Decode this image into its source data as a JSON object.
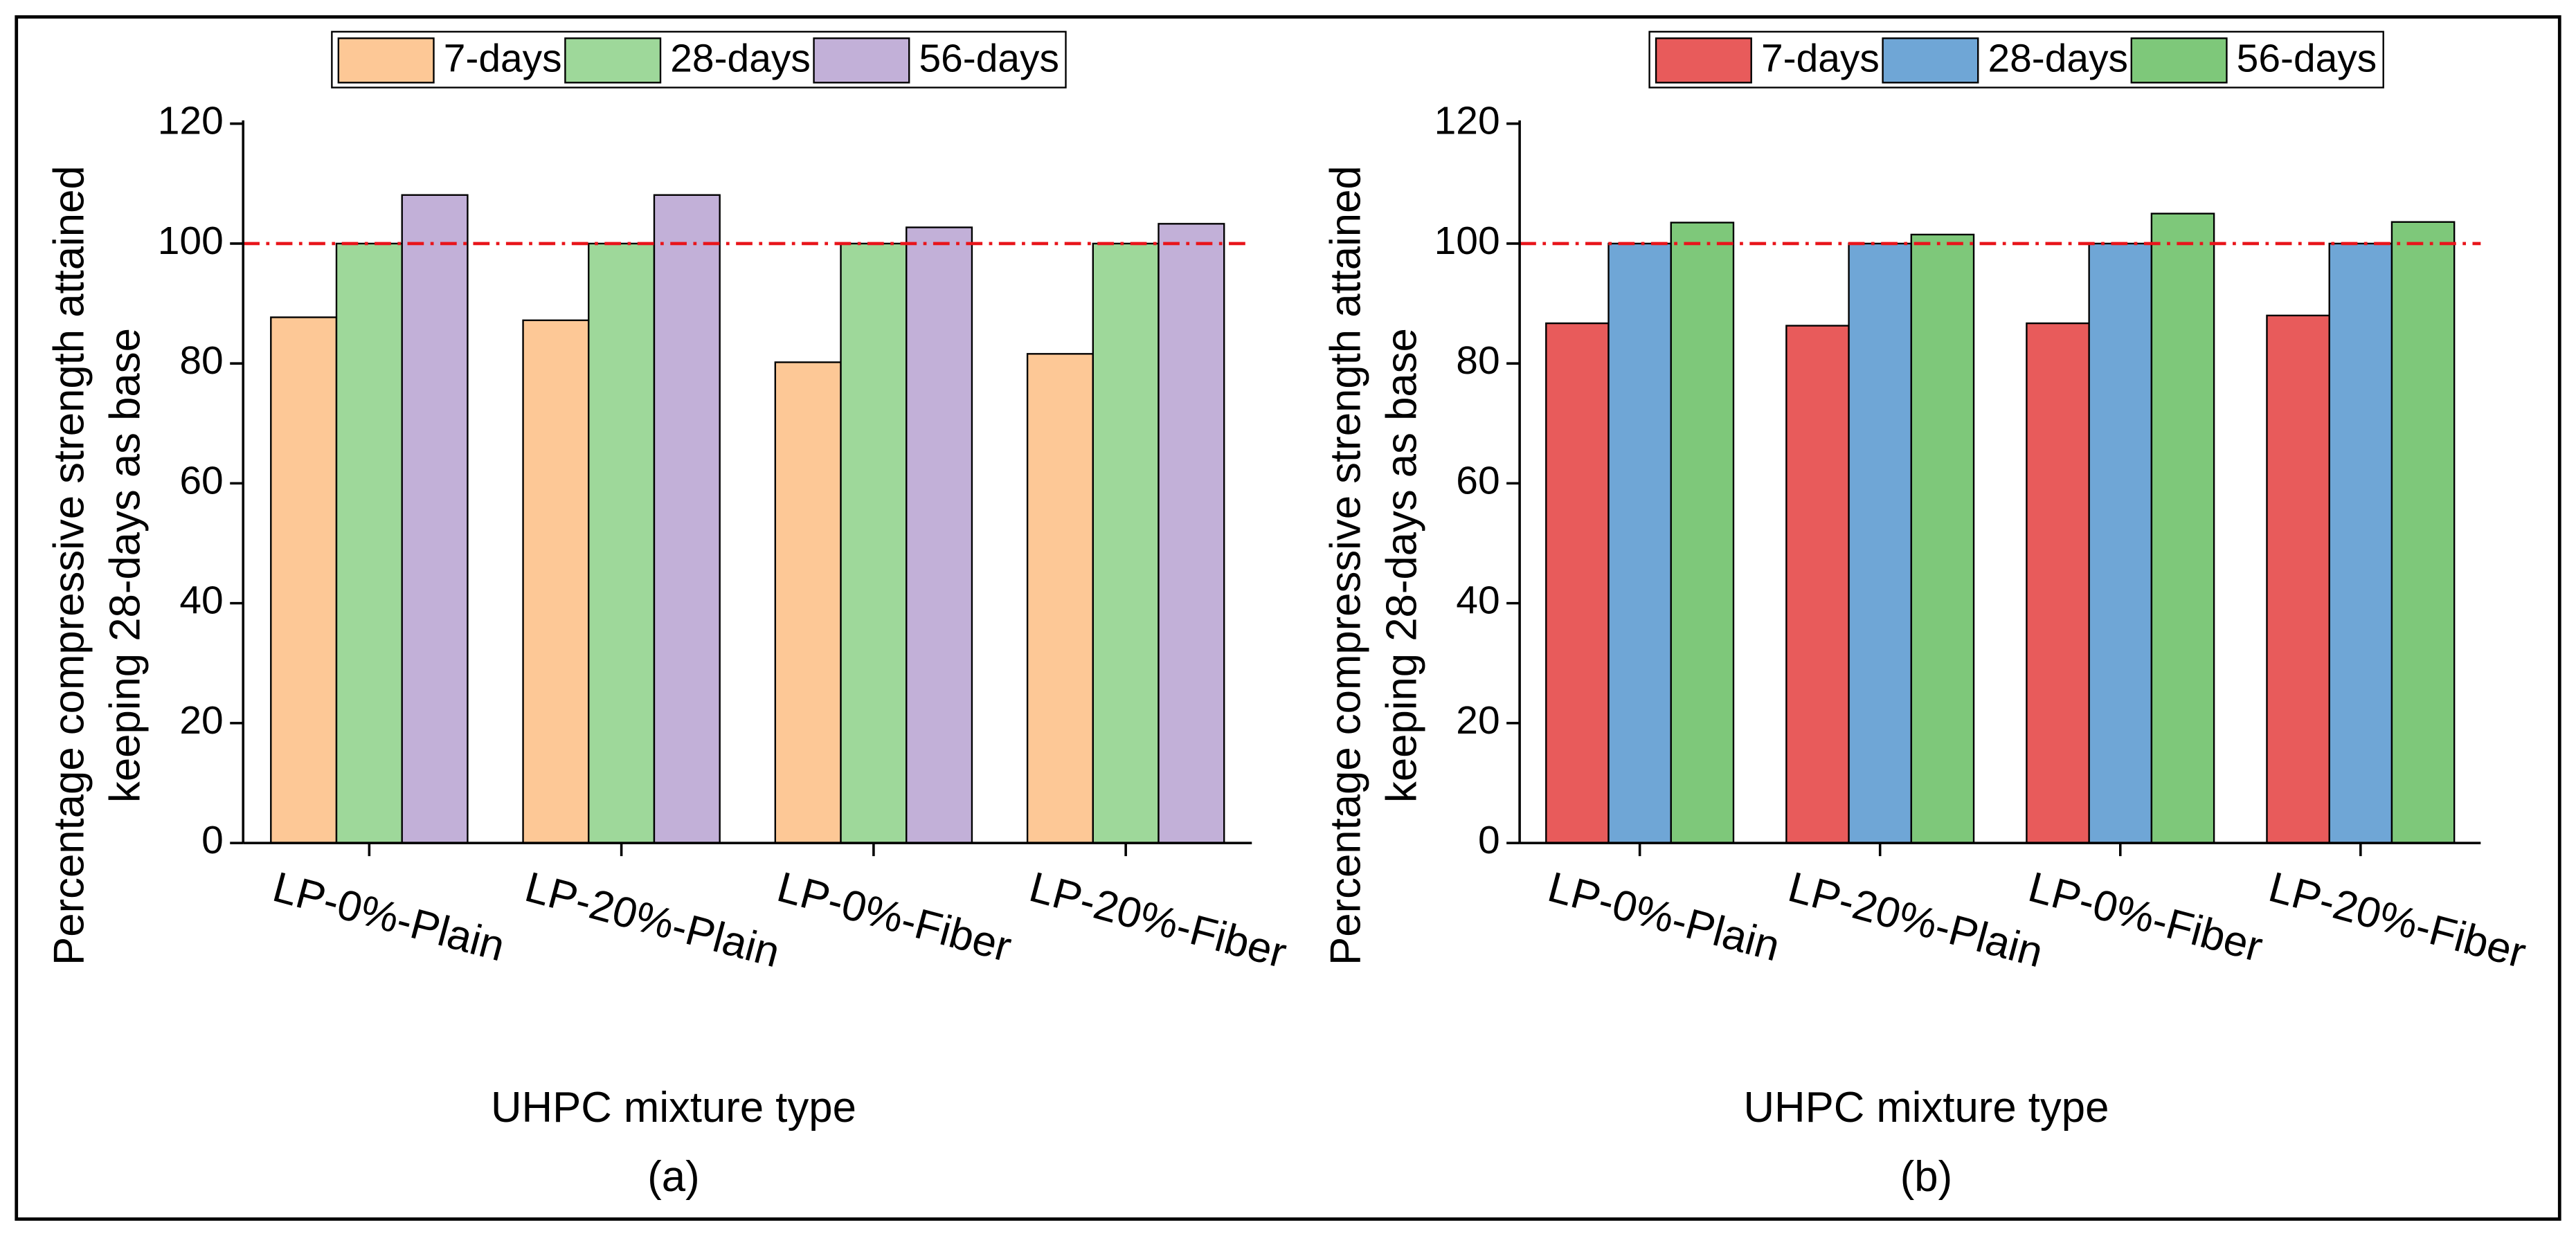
{
  "chart_data": [
    {
      "type": "bar",
      "panel_label": "(a)",
      "xlabel": "UHPC mixture type",
      "ylabel": [
        "Percentage compressive strength attained",
        "keeping 28-days as base"
      ],
      "categories": [
        "LP-0%-Plain",
        "LP-20%-Plain",
        "LP-0%-Fiber",
        "LP-20%-Fiber"
      ],
      "series": [
        {
          "name": "7-days",
          "color": "#fdc896",
          "values": [
            87.7,
            87.2,
            80.2,
            81.6
          ]
        },
        {
          "name": "28-days",
          "color": "#9ed89a",
          "values": [
            100,
            100,
            100,
            100
          ]
        },
        {
          "name": "56-days",
          "color": "#c2b0d8",
          "values": [
            108.1,
            108.1,
            102.7,
            103.3
          ]
        }
      ],
      "ylim": [
        0,
        120
      ],
      "yticks": [
        0,
        20,
        40,
        60,
        80,
        100,
        120
      ],
      "reference_line": 100,
      "reference_color": "#e8151b"
    },
    {
      "type": "bar",
      "panel_label": "(b)",
      "xlabel": "UHPC mixture type",
      "ylabel": [
        "Percentage compressive strength attained",
        "keeping 28-days as base"
      ],
      "categories": [
        "LP-0%-Plain",
        "LP-20%-Plain",
        "LP-0%-Fiber",
        "LP-20%-Fiber"
      ],
      "series": [
        {
          "name": "7-days",
          "color": "#e85b5b",
          "values": [
            86.7,
            86.3,
            86.7,
            88.0
          ]
        },
        {
          "name": "28-days",
          "color": "#6fa6d6",
          "values": [
            100,
            100,
            100,
            100
          ]
        },
        {
          "name": "56-days",
          "color": "#7ec87a",
          "values": [
            103.5,
            101.5,
            105.0,
            103.6
          ]
        }
      ],
      "ylim": [
        0,
        120
      ],
      "yticks": [
        0,
        20,
        40,
        60,
        80,
        100,
        120
      ],
      "reference_line": 100,
      "reference_color": "#e8151b"
    }
  ]
}
